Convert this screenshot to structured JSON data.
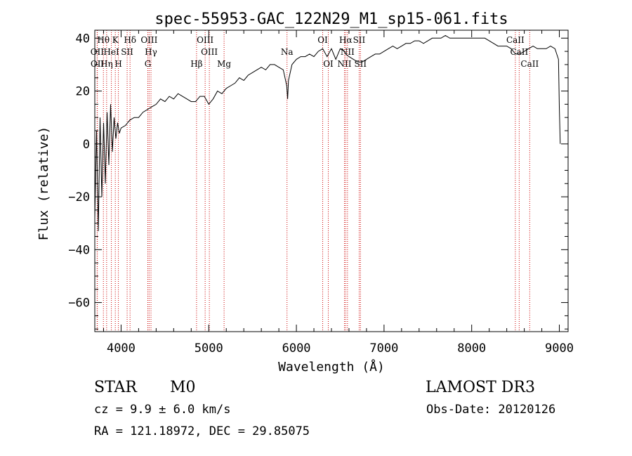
{
  "chart_data": {
    "type": "line",
    "title": "spec-55953-GAC_122N29_M1_sp15-061.fits",
    "xlabel": "Wavelength (Å)",
    "ylabel": "Flux (relative)",
    "xlim": [
      3700,
      9100
    ],
    "ylim": [
      -71,
      43
    ],
    "xticks": [
      4000,
      5000,
      6000,
      7000,
      8000,
      9000
    ],
    "yticks": [
      -60,
      -40,
      -20,
      0,
      20,
      40
    ],
    "grid": false,
    "series": [
      {
        "name": "flux",
        "x": [
          3700,
          3720,
          3740,
          3760,
          3780,
          3800,
          3820,
          3840,
          3860,
          3880,
          3900,
          3920,
          3940,
          3960,
          3980,
          4000,
          4050,
          4100,
          4150,
          4200,
          4250,
          4300,
          4350,
          4400,
          4450,
          4500,
          4550,
          4600,
          4650,
          4700,
          4750,
          4800,
          4850,
          4900,
          4950,
          5000,
          5050,
          5100,
          5150,
          5200,
          5250,
          5300,
          5350,
          5400,
          5450,
          5500,
          5550,
          5600,
          5650,
          5700,
          5750,
          5800,
          5850,
          5890,
          5900,
          5910,
          5950,
          6000,
          6050,
          6100,
          6150,
          6200,
          6250,
          6300,
          6350,
          6400,
          6450,
          6500,
          6550,
          6563,
          6600,
          6650,
          6700,
          6750,
          6800,
          6850,
          6900,
          6950,
          7000,
          7050,
          7100,
          7150,
          7200,
          7250,
          7300,
          7350,
          7400,
          7450,
          7500,
          7550,
          7600,
          7650,
          7700,
          7750,
          7800,
          7850,
          7900,
          7950,
          8000,
          8050,
          8100,
          8150,
          8200,
          8250,
          8300,
          8350,
          8400,
          8450,
          8500,
          8550,
          8600,
          8650,
          8700,
          8750,
          8800,
          8850,
          8900,
          8950,
          8990,
          9000,
          9010
        ],
        "y": [
          -28,
          5,
          -33,
          10,
          -20,
          8,
          -15,
          12,
          -8,
          15,
          -3,
          10,
          2,
          8,
          4,
          6,
          7,
          9,
          10,
          10,
          12,
          13,
          14,
          15,
          17,
          16,
          18,
          17,
          19,
          18,
          17,
          16,
          16,
          18,
          18,
          15,
          17,
          20,
          19,
          21,
          22,
          23,
          25,
          24,
          26,
          27,
          28,
          29,
          28,
          30,
          30,
          29,
          28,
          22,
          17,
          24,
          30,
          32,
          33,
          33,
          34,
          33,
          35,
          36,
          33,
          36,
          32,
          36,
          35,
          34,
          33,
          32,
          31,
          31,
          32,
          33,
          34,
          34,
          35,
          36,
          37,
          36,
          37,
          38,
          38,
          39,
          39,
          38,
          39,
          40,
          40,
          40,
          41,
          40,
          40,
          40,
          40,
          40,
          40,
          40,
          40,
          40,
          39,
          38,
          37,
          37,
          37,
          36,
          34,
          34,
          35,
          36,
          37,
          36,
          36,
          36,
          37,
          36,
          32,
          14,
          0
        ]
      }
    ],
    "line_markers": [
      {
        "label": "Hθ",
        "wavelength": 3798,
        "row": 0
      },
      {
        "label": "OII",
        "wavelength": 3727,
        "row": 1
      },
      {
        "label": "OII",
        "wavelength": 3729,
        "row": 2
      },
      {
        "label": "Hη",
        "wavelength": 3835,
        "row": 2
      },
      {
        "label": "HeI",
        "wavelength": 3889,
        "row": 1
      },
      {
        "label": "K",
        "wavelength": 3934,
        "row": 0
      },
      {
        "label": "H",
        "wavelength": 3969,
        "row": 2
      },
      {
        "label": "SII",
        "wavelength": 4069,
        "row": 1
      },
      {
        "label": "Hδ",
        "wavelength": 4102,
        "row": 0
      },
      {
        "label": "OIII",
        "wavelength": 4320,
        "row": 0
      },
      {
        "label": "Hγ",
        "wavelength": 4341,
        "row": 1
      },
      {
        "label": "G",
        "wavelength": 4305,
        "row": 2
      },
      {
        "label": "Hβ",
        "wavelength": 4861,
        "row": 2
      },
      {
        "label": "OIII",
        "wavelength": 4959,
        "row": 0
      },
      {
        "label": "OIII",
        "wavelength": 5007,
        "row": 1
      },
      {
        "label": "Mg",
        "wavelength": 5175,
        "row": 2
      },
      {
        "label": "Na",
        "wavelength": 5893,
        "row": 1
      },
      {
        "label": "OI",
        "wavelength": 6300,
        "row": 0
      },
      {
        "label": "OI",
        "wavelength": 6364,
        "row": 2
      },
      {
        "label": "Hα",
        "wavelength": 6563,
        "row": 0
      },
      {
        "label": "NII",
        "wavelength": 6548,
        "row": 2
      },
      {
        "label": "NII",
        "wavelength": 6583,
        "row": 1
      },
      {
        "label": "SII",
        "wavelength": 6716,
        "row": 0
      },
      {
        "label": "SII",
        "wavelength": 6731,
        "row": 2
      },
      {
        "label": "CaII",
        "wavelength": 8498,
        "row": 0
      },
      {
        "label": "CaII",
        "wavelength": 8542,
        "row": 1
      },
      {
        "label": "CaII",
        "wavelength": 8662,
        "row": 2
      }
    ],
    "marker_color": "#cc0000"
  },
  "info": {
    "object_class": "STAR",
    "subclass": "M0",
    "survey": "LAMOST DR3",
    "cz": "cz = 9.9 ± 6.0 km/s",
    "obs_date": "Obs-Date: 20120126",
    "coords": "RA = 121.18972, DEC =  29.85075"
  }
}
